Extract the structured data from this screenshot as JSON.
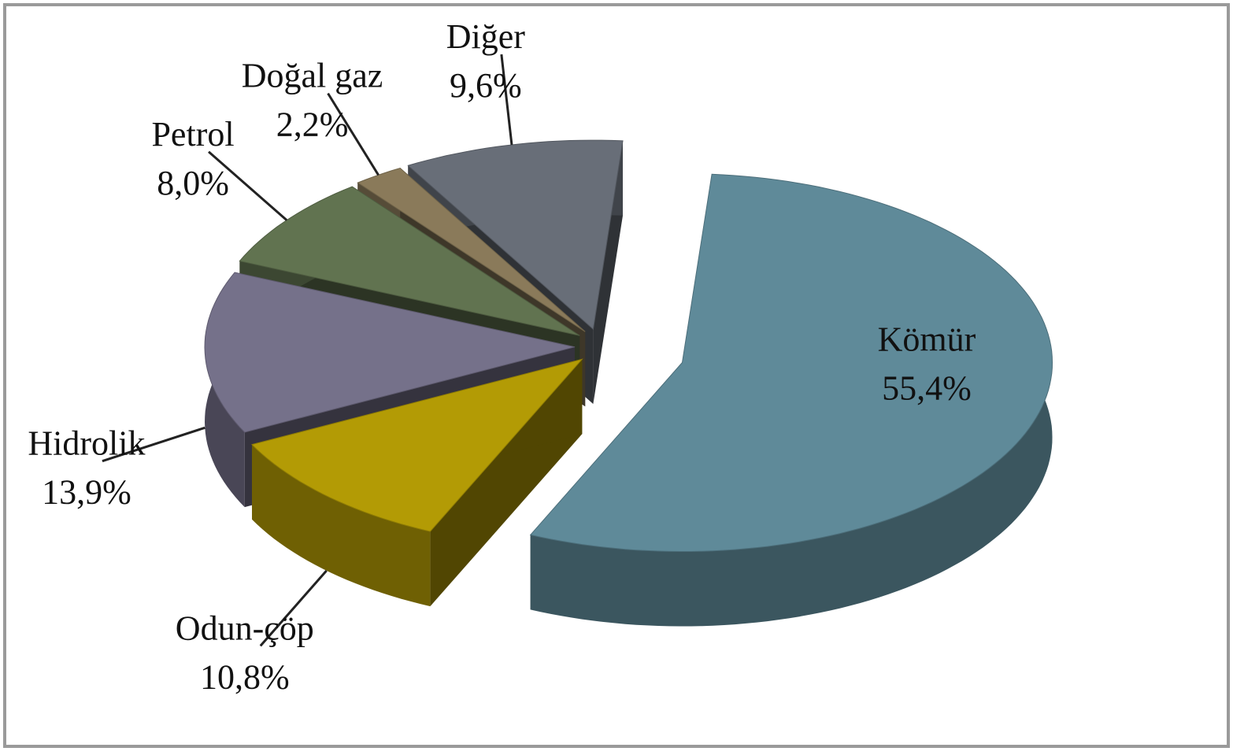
{
  "chart_data": {
    "type": "pie",
    "categories": [
      "Kömür",
      "Odun-çöp",
      "Hidrolik",
      "Petrol",
      "Doğal gaz",
      "Diğer"
    ],
    "values": [
      55.4,
      10.8,
      13.9,
      8.0,
      2.2,
      9.6
    ],
    "value_labels": [
      "55,4%",
      "10,8%",
      "13,9%",
      "8,0%",
      "2,2%",
      "9,6%"
    ],
    "colors": [
      "#5f8a99",
      "#b39b05",
      "#75718a",
      "#617350",
      "#8a7a5a",
      "#686e78"
    ]
  }
}
